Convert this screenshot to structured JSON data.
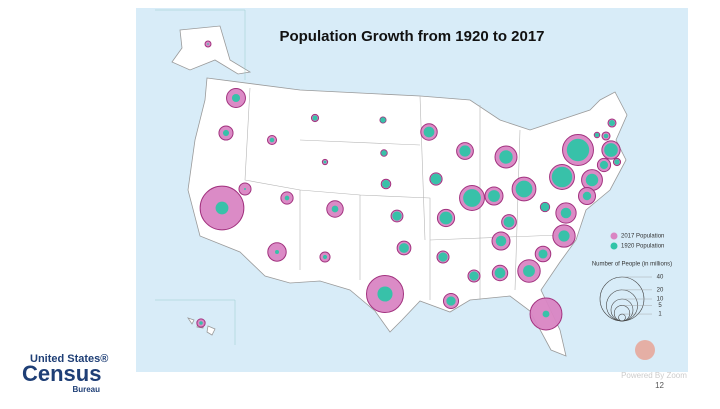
{
  "chart_data": {
    "type": "bubble_map",
    "title": "Population Growth from 1920 to 2017",
    "series": [
      {
        "name": "2017 Population",
        "color": "#d985c3",
        "values": [
          7.4,
          4.1,
          39.5,
          3.0,
          1.7,
          1.05,
          0.58,
          3.1,
          7.0,
          5.6,
          2.1,
          0.76,
          0.87,
          1.9,
          2.9,
          3.9,
          28.3,
          5.6,
          3.1,
          6.1,
          3.0,
          4.7,
          5.8,
          12.8,
          10.0,
          6.7,
          4.45,
          6.7,
          3.0,
          4.9,
          10.4,
          21.0,
          5.0,
          10.3,
          8.5,
          1.8,
          11.7,
          12.8,
          19.8,
          1.33,
          0.62,
          1.34,
          6.9,
          3.6,
          1.06,
          9.0,
          6.0,
          0.74,
          1.43
        ]
      },
      {
        "name": "1920 Population",
        "color": "#2fc4a8",
        "values": [
          1.36,
          0.78,
          3.4,
          0.08,
          0.43,
          0.55,
          0.19,
          0.45,
          0.33,
          0.94,
          0.36,
          0.65,
          0.64,
          1.3,
          1.8,
          2.0,
          4.7,
          2.4,
          2.4,
          3.4,
          1.75,
          1.8,
          2.6,
          6.5,
          3.7,
          2.9,
          2.4,
          2.3,
          1.8,
          2.35,
          2.9,
          0.97,
          1.7,
          2.6,
          2.3,
          1.46,
          5.8,
          8.7,
          10.4,
          0.77,
          0.35,
          0.44,
          3.85,
          1.38,
          0.6,
          3.2,
          1.45,
          0.055,
          0.26
        ]
      }
    ],
    "size_legend_title": "Number of People (in millions)",
    "size_ticks": [
      40,
      20,
      10,
      5,
      1
    ]
  },
  "logo": {
    "line1": "United States®",
    "line2": "Census",
    "line3": "Bureau"
  },
  "page_number": "12",
  "watermark": "Powered By Zoom"
}
